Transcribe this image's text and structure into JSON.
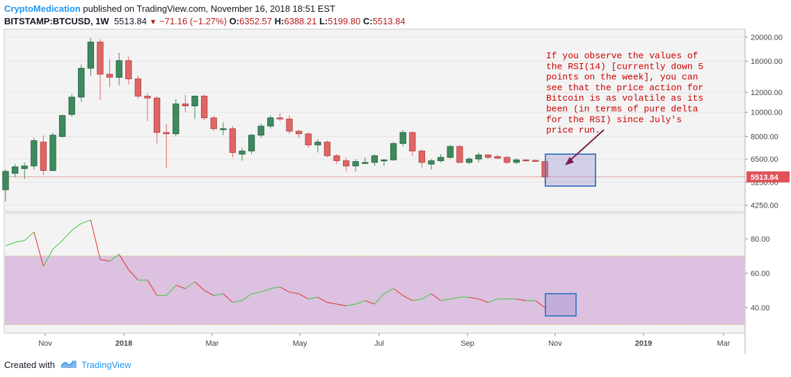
{
  "header": {
    "author": "CryptoMedication",
    "published_text": "published on TradingView.com, November 16, 2018 18:51 EST",
    "symbol": "BITSTAMP:BTCUSD, 1W",
    "last": "5513.84",
    "change": "−71.16 (−1.27%)",
    "open_key": "O:",
    "open": "6352.57",
    "high_key": "H:",
    "high": "6388.21",
    "low_key": "L:",
    "low": "5199.80",
    "close_key": "C:",
    "close": "5513.84"
  },
  "footer": {
    "created_with": "Created with",
    "brand": "TradingView"
  },
  "colors": {
    "up": "#3e8a5e",
    "down": "#e06666",
    "rsi_up": "#33cc33",
    "rsi_down": "#e03030",
    "rsi_band": "#dcc1e0",
    "annotation": "#cc0000",
    "arrow": "#7a1f4f",
    "box": "#4a7fc0",
    "price_label": "#e0525a"
  },
  "annotation": {
    "lines": [
      "If you observe the values of",
      "the RSI(14) [currently down 5",
      "points on the week], you can",
      "see that the price action for",
      "Bitcoin is as volatile as its",
      "been (in terms of pure delta",
      "for the RSI) since July's",
      "price run."
    ]
  },
  "chart_data": [
    {
      "type": "candlestick",
      "title": "BITSTAMP:BTCUSD, 1W",
      "scale": "log",
      "ylim": [
        4000,
        21500
      ],
      "y_ticks": [
        "20000.00",
        "16000.00",
        "12000.00",
        "10000.00",
        "8000.00",
        "6500.00",
        "5250.00",
        "4250.00"
      ],
      "last_price_label": "5513.84",
      "x_ticks": [
        "Nov",
        "2018",
        "Mar",
        "May",
        "Jul",
        "Sep",
        "Nov",
        "2019",
        "Mar"
      ],
      "candles": [
        {
          "o": 4900,
          "h": 5900,
          "l": 4400,
          "c": 5800
        },
        {
          "o": 5700,
          "h": 6200,
          "l": 5500,
          "c": 6050
        },
        {
          "o": 5950,
          "h": 6300,
          "l": 5400,
          "c": 6100
        },
        {
          "o": 6100,
          "h": 7900,
          "l": 5900,
          "c": 7700
        },
        {
          "o": 7600,
          "h": 8100,
          "l": 5600,
          "c": 5850
        },
        {
          "o": 5850,
          "h": 8300,
          "l": 5800,
          "c": 8100
        },
        {
          "o": 8000,
          "h": 9800,
          "l": 7900,
          "c": 9700
        },
        {
          "o": 9800,
          "h": 11800,
          "l": 9600,
          "c": 11500
        },
        {
          "o": 11500,
          "h": 15500,
          "l": 11000,
          "c": 15000
        },
        {
          "o": 15000,
          "h": 19800,
          "l": 14000,
          "c": 19100
        },
        {
          "o": 19100,
          "h": 19600,
          "l": 11200,
          "c": 14200
        },
        {
          "o": 14200,
          "h": 16300,
          "l": 12600,
          "c": 13800
        },
        {
          "o": 13800,
          "h": 17300,
          "l": 12800,
          "c": 16100
        },
        {
          "o": 16100,
          "h": 16700,
          "l": 12900,
          "c": 13600
        },
        {
          "o": 13600,
          "h": 14000,
          "l": 11300,
          "c": 11600
        },
        {
          "o": 11600,
          "h": 11900,
          "l": 9200,
          "c": 11400
        },
        {
          "o": 11400,
          "h": 11600,
          "l": 7500,
          "c": 8300
        },
        {
          "o": 8300,
          "h": 9000,
          "l": 6000,
          "c": 8200
        },
        {
          "o": 8200,
          "h": 11300,
          "l": 8000,
          "c": 10800
        },
        {
          "o": 10800,
          "h": 11700,
          "l": 10000,
          "c": 10600
        },
        {
          "o": 10600,
          "h": 11700,
          "l": 9400,
          "c": 11600
        },
        {
          "o": 11600,
          "h": 11800,
          "l": 9300,
          "c": 9500
        },
        {
          "o": 9500,
          "h": 9700,
          "l": 8400,
          "c": 8600
        },
        {
          "o": 8600,
          "h": 9100,
          "l": 8100,
          "c": 8600
        },
        {
          "o": 8600,
          "h": 8800,
          "l": 6600,
          "c": 6900
        },
        {
          "o": 6800,
          "h": 7200,
          "l": 6400,
          "c": 7000
        },
        {
          "o": 7000,
          "h": 8200,
          "l": 6800,
          "c": 8100
        },
        {
          "o": 8100,
          "h": 9000,
          "l": 7900,
          "c": 8800
        },
        {
          "o": 8800,
          "h": 9700,
          "l": 8600,
          "c": 9500
        },
        {
          "o": 9500,
          "h": 9900,
          "l": 9200,
          "c": 9400
        },
        {
          "o": 9400,
          "h": 9700,
          "l": 8200,
          "c": 8400
        },
        {
          "o": 8400,
          "h": 8500,
          "l": 7900,
          "c": 8200
        },
        {
          "o": 8200,
          "h": 8300,
          "l": 7200,
          "c": 7400
        },
        {
          "o": 7400,
          "h": 7800,
          "l": 6900,
          "c": 7600
        },
        {
          "o": 7600,
          "h": 7700,
          "l": 6600,
          "c": 6700
        },
        {
          "o": 6700,
          "h": 6800,
          "l": 6200,
          "c": 6400
        },
        {
          "o": 6400,
          "h": 6600,
          "l": 5800,
          "c": 6100
        },
        {
          "o": 6100,
          "h": 6500,
          "l": 5800,
          "c": 6350
        },
        {
          "o": 6300,
          "h": 6600,
          "l": 6200,
          "c": 6300
        },
        {
          "o": 6300,
          "h": 6800,
          "l": 6100,
          "c": 6700
        },
        {
          "o": 6400,
          "h": 6500,
          "l": 6100,
          "c": 6450
        },
        {
          "o": 6450,
          "h": 7600,
          "l": 6400,
          "c": 7500
        },
        {
          "o": 7500,
          "h": 8500,
          "l": 7300,
          "c": 8300
        },
        {
          "o": 8300,
          "h": 8400,
          "l": 6700,
          "c": 7000
        },
        {
          "o": 7000,
          "h": 7100,
          "l": 6000,
          "c": 6300
        },
        {
          "o": 6200,
          "h": 6500,
          "l": 5900,
          "c": 6400
        },
        {
          "o": 6400,
          "h": 6800,
          "l": 6300,
          "c": 6600
        },
        {
          "o": 6600,
          "h": 7400,
          "l": 6500,
          "c": 7300
        },
        {
          "o": 7300,
          "h": 7400,
          "l": 6300,
          "c": 6300
        },
        {
          "o": 6300,
          "h": 6600,
          "l": 6200,
          "c": 6500
        },
        {
          "o": 6500,
          "h": 6900,
          "l": 6300,
          "c": 6750
        },
        {
          "o": 6750,
          "h": 6800,
          "l": 6500,
          "c": 6600
        },
        {
          "o": 6650,
          "h": 6750,
          "l": 6500,
          "c": 6550
        },
        {
          "o": 6600,
          "h": 6700,
          "l": 6200,
          "c": 6300
        },
        {
          "o": 6300,
          "h": 6550,
          "l": 6200,
          "c": 6450
        },
        {
          "o": 6450,
          "h": 6500,
          "l": 6350,
          "c": 6400
        },
        {
          "o": 6420,
          "h": 6450,
          "l": 6380,
          "c": 6410
        },
        {
          "o": 6352.57,
          "h": 6388.21,
          "l": 5199.8,
          "c": 5513.84
        }
      ]
    },
    {
      "type": "line",
      "title": "RSI (14)",
      "ylim": [
        25,
        95
      ],
      "y_ticks": [
        "80.00",
        "60.00",
        "40.00"
      ],
      "band": [
        30,
        70
      ],
      "values": [
        76,
        78,
        79,
        84,
        64,
        74,
        79,
        85,
        89,
        91,
        68,
        67,
        71,
        62,
        56,
        56,
        47,
        47,
        53,
        51,
        55,
        50,
        47,
        48,
        43,
        44,
        48,
        49,
        51,
        52,
        49,
        48,
        45,
        46,
        43,
        42,
        41,
        42,
        44,
        42,
        48,
        51,
        47,
        44,
        45,
        48,
        44,
        45,
        46,
        46,
        45,
        43,
        45,
        45,
        45,
        44,
        44,
        40
      ]
    }
  ]
}
